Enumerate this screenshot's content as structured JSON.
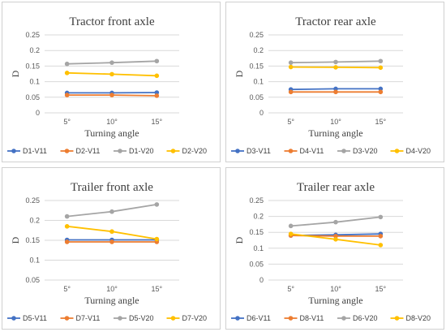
{
  "figure": {
    "colors": {
      "V11_a": "#4472c4",
      "V11_b": "#ed7d31",
      "V20_a": "#a5a5a5",
      "V20_b": "#ffc000"
    }
  },
  "chart_data": [
    {
      "type": "line",
      "title": "Tractor front axle",
      "xlabel": "Turning angle",
      "ylabel": "D",
      "categories": [
        "5°",
        "10°",
        "15°"
      ],
      "ylim": [
        0,
        0.25
      ],
      "yticks": [
        "0",
        "0.05",
        "0.1",
        "0.15",
        "0.2",
        "0.25"
      ],
      "ytick_values": [
        0,
        0.05,
        0.1,
        0.15,
        0.2,
        0.25
      ],
      "grid": true,
      "legend": "bottom",
      "series": [
        {
          "name": "D1-V11",
          "color": "#4472c4",
          "values": [
            0.064,
            0.064,
            0.065
          ]
        },
        {
          "name": "D2-V11",
          "color": "#ed7d31",
          "values": [
            0.057,
            0.057,
            0.055
          ]
        },
        {
          "name": "D1-V20",
          "color": "#a5a5a5",
          "values": [
            0.157,
            0.161,
            0.166
          ]
        },
        {
          "name": "D2-V20",
          "color": "#ffc000",
          "values": [
            0.128,
            0.124,
            0.119
          ]
        }
      ]
    },
    {
      "type": "line",
      "title": "Tractor rear axle",
      "xlabel": "Turning angle",
      "ylabel": "D",
      "categories": [
        "5°",
        "10°",
        "15°"
      ],
      "ylim": [
        0,
        0.25
      ],
      "yticks": [
        "0",
        "0.05",
        "0.1",
        "0.15",
        "0.2",
        "0.25"
      ],
      "ytick_values": [
        0,
        0.05,
        0.1,
        0.15,
        0.2,
        0.25
      ],
      "grid": true,
      "legend": "bottom",
      "series": [
        {
          "name": "D3-V11",
          "color": "#4472c4",
          "values": [
            0.075,
            0.077,
            0.077
          ]
        },
        {
          "name": "D4-V11",
          "color": "#ed7d31",
          "values": [
            0.067,
            0.067,
            0.067
          ]
        },
        {
          "name": "D3-V20",
          "color": "#a5a5a5",
          "values": [
            0.161,
            0.163,
            0.166
          ]
        },
        {
          "name": "D4-V20",
          "color": "#ffc000",
          "values": [
            0.147,
            0.146,
            0.145
          ]
        }
      ]
    },
    {
      "type": "line",
      "title": "Trailer front axle",
      "xlabel": "Turning angle",
      "ylabel": "D",
      "categories": [
        "5°",
        "10°",
        "15°"
      ],
      "ylim": [
        0.05,
        0.25
      ],
      "yticks": [
        "0.05",
        "0.1",
        "0.15",
        "0.2",
        "0.25"
      ],
      "ytick_values": [
        0.05,
        0.1,
        0.15,
        0.2,
        0.25
      ],
      "grid": true,
      "legend": "bottom",
      "series": [
        {
          "name": "D5-V11",
          "color": "#4472c4",
          "values": [
            0.151,
            0.151,
            0.151
          ]
        },
        {
          "name": "D7-V11",
          "color": "#ed7d31",
          "values": [
            0.146,
            0.146,
            0.146
          ]
        },
        {
          "name": "D5-V20",
          "color": "#a5a5a5",
          "values": [
            0.21,
            0.222,
            0.24
          ]
        },
        {
          "name": "D7-V20",
          "color": "#ffc000",
          "values": [
            0.185,
            0.172,
            0.153
          ]
        }
      ]
    },
    {
      "type": "line",
      "title": "Trailer rear axle",
      "xlabel": "Turning angle",
      "ylabel": "D",
      "categories": [
        "5°",
        "10°",
        "15°"
      ],
      "ylim": [
        0,
        0.25
      ],
      "yticks": [
        "0",
        "0.05",
        "0.1",
        "0.15",
        "0.2",
        "0.25"
      ],
      "ytick_values": [
        0,
        0.05,
        0.1,
        0.15,
        0.2,
        0.25
      ],
      "grid": true,
      "legend": "bottom",
      "series": [
        {
          "name": "D6-V11",
          "color": "#4472c4",
          "values": [
            0.14,
            0.142,
            0.145
          ]
        },
        {
          "name": "D8-V11",
          "color": "#ed7d31",
          "values": [
            0.14,
            0.138,
            0.138
          ]
        },
        {
          "name": "D6-V20",
          "color": "#a5a5a5",
          "values": [
            0.17,
            0.182,
            0.198
          ]
        },
        {
          "name": "D8-V20",
          "color": "#ffc000",
          "values": [
            0.145,
            0.128,
            0.11
          ]
        }
      ]
    }
  ]
}
